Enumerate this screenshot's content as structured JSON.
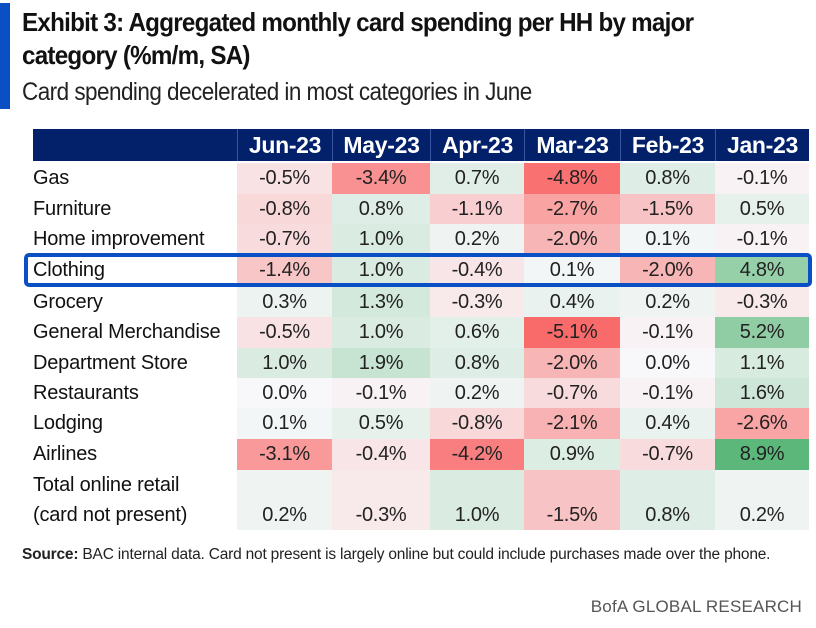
{
  "header": {
    "title": "Exhibit 3: Aggregated monthly card spending per HH by major category (%m/m, SA)",
    "subtitle": "Card spending decelerated in most categories in June"
  },
  "footer": {
    "source_label": "Source:",
    "source_text": "BAC internal data. Card not present is largely online but could include purchases made over the phone.",
    "brand": "BofA GLOBAL RESEARCH"
  },
  "colors": {
    "accent": "#0a4fc4",
    "header_bg": "#03216b",
    "negative_max": "#f96a6a",
    "positive_max": "#5cb87a",
    "neutral": "#f8f8fa"
  },
  "highlighted_row": "Clothing",
  "chart_data": {
    "type": "heatmap",
    "title": "Exhibit 3: Aggregated monthly card spending per HH by major category (%m/m, SA)",
    "subtitle": "Card spending decelerated in most categories in June",
    "unit": "%",
    "columns": [
      "Jun-23",
      "May-23",
      "Apr-23",
      "Mar-23",
      "Feb-23",
      "Jan-23"
    ],
    "rows": [
      {
        "label": "Gas",
        "values": [
          -0.5,
          -3.4,
          0.7,
          -4.8,
          0.8,
          -0.1
        ]
      },
      {
        "label": "Furniture",
        "values": [
          -0.8,
          0.8,
          -1.1,
          -2.7,
          -1.5,
          0.5
        ]
      },
      {
        "label": "Home improvement",
        "values": [
          -0.7,
          1.0,
          0.2,
          -2.0,
          0.1,
          -0.1
        ]
      },
      {
        "label": "Clothing",
        "values": [
          -1.4,
          1.0,
          -0.4,
          0.1,
          -2.0,
          4.8
        ]
      },
      {
        "label": "Grocery",
        "values": [
          0.3,
          1.3,
          -0.3,
          0.4,
          0.2,
          -0.3
        ]
      },
      {
        "label": "General Merchandise",
        "values": [
          -0.5,
          1.0,
          0.6,
          -5.1,
          -0.1,
          5.2
        ]
      },
      {
        "label": "Department Store",
        "values": [
          1.0,
          1.9,
          0.8,
          -2.0,
          0.0,
          1.1
        ]
      },
      {
        "label": "Restaurants",
        "values": [
          0.0,
          -0.1,
          0.2,
          -0.7,
          -0.1,
          1.6
        ]
      },
      {
        "label": "Lodging",
        "values": [
          0.1,
          0.5,
          -0.8,
          -2.1,
          0.4,
          -2.6
        ]
      },
      {
        "label": "Airlines",
        "values": [
          -3.1,
          -0.4,
          -4.2,
          0.9,
          -0.7,
          8.9
        ]
      },
      {
        "label": "Total online retail (card not present)",
        "label_lines": [
          "Total online retail",
          "(card not present)"
        ],
        "values": [
          0.2,
          -0.3,
          1.0,
          -1.5,
          0.8,
          0.2
        ]
      }
    ],
    "color_scale": {
      "min": -5.1,
      "mid": 0,
      "max": 8.9
    }
  }
}
